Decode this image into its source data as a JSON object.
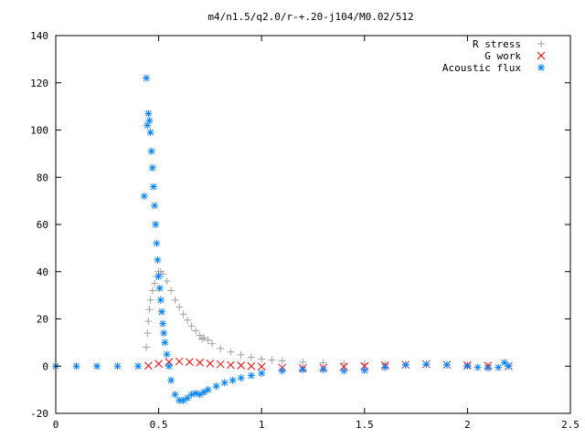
{
  "chart_data": {
    "type": "scatter",
    "title": "m4/n1.5/q2.0/r-+.20-j104/M0.02/512",
    "xlabel": "",
    "ylabel": "",
    "xlim": [
      0,
      2.5
    ],
    "ylim": [
      -20,
      140
    ],
    "xticks": [
      "0",
      "0.5",
      "1",
      "1.5",
      "2",
      "2.5"
    ],
    "yticks": [
      "-20",
      "0",
      "20",
      "40",
      "60",
      "80",
      "100",
      "120",
      "140"
    ],
    "grid": false,
    "legend_position": "top-right",
    "series": [
      {
        "name": "R stress",
        "marker": "plus",
        "color": "#a0a0a0",
        "x": [
          0.44,
          0.445,
          0.45,
          0.455,
          0.46,
          0.47,
          0.48,
          0.49,
          0.5,
          0.51,
          0.52,
          0.54,
          0.56,
          0.58,
          0.6,
          0.62,
          0.64,
          0.66,
          0.68,
          0.7,
          0.71,
          0.72,
          0.74,
          0.76,
          0.8,
          0.85,
          0.9,
          0.95,
          1.0,
          1.05,
          1.1,
          1.2,
          1.3,
          1.4,
          1.5,
          1.6,
          1.7,
          1.8,
          1.9,
          2.0,
          2.1,
          2.2
        ],
        "y": [
          8,
          14,
          19,
          24,
          28,
          32,
          35,
          38,
          40,
          40,
          39,
          36,
          32,
          28,
          25,
          22,
          19.5,
          17,
          15,
          13,
          11.5,
          12,
          11,
          9.5,
          7.5,
          6,
          4.8,
          3.8,
          3,
          2.6,
          2.2,
          1.7,
          1.4,
          1.2,
          1,
          0.8,
          0.7,
          0.6,
          0.5,
          0.4,
          0.3,
          0.2
        ]
      },
      {
        "name": "G work",
        "marker": "cross",
        "color": "#ff0000",
        "x": [
          0.45,
          0.5,
          0.55,
          0.6,
          0.65,
          0.7,
          0.75,
          0.8,
          0.85,
          0.9,
          0.95,
          1.0,
          1.1,
          1.2,
          1.3,
          1.4,
          1.5,
          1.6,
          1.7,
          1.8,
          1.9,
          2.0,
          2.1,
          2.2
        ],
        "y": [
          0.2,
          1,
          1.8,
          2,
          1.8,
          1.5,
          1.1,
          0.8,
          0.5,
          0.3,
          0,
          -0.2,
          -0.6,
          -0.8,
          -0.6,
          -0.3,
          0,
          0.4,
          0.6,
          0.8,
          0.6,
          0.4,
          0.2,
          0
        ]
      },
      {
        "name": "Acoustic flux",
        "marker": "star",
        "color": "#0080ff",
        "x": [
          0,
          0.1,
          0.2,
          0.3,
          0.4,
          0.43,
          0.44,
          0.445,
          0.45,
          0.455,
          0.46,
          0.465,
          0.47,
          0.475,
          0.48,
          0.485,
          0.49,
          0.495,
          0.5,
          0.505,
          0.51,
          0.515,
          0.52,
          0.525,
          0.53,
          0.54,
          0.55,
          0.56,
          0.58,
          0.6,
          0.62,
          0.64,
          0.66,
          0.68,
          0.7,
          0.72,
          0.74,
          0.78,
          0.82,
          0.86,
          0.9,
          0.95,
          1.0,
          1.1,
          1.2,
          1.3,
          1.4,
          1.5,
          1.6,
          1.7,
          1.8,
          1.9,
          2.0,
          2.05,
          2.1,
          2.15,
          2.18,
          2.2
        ],
        "y": [
          0,
          0,
          0,
          0,
          0,
          72,
          122,
          102,
          107,
          104,
          99,
          91,
          84,
          76,
          68,
          60,
          52,
          45,
          38,
          33,
          28,
          23,
          18,
          14,
          10,
          5,
          0,
          -6,
          -12,
          -14.5,
          -14.5,
          -13.5,
          -12,
          -11.5,
          -12,
          -11,
          -10,
          -8.5,
          -7,
          -6,
          -5,
          -4,
          -3,
          -2,
          -1.5,
          -1.5,
          -2,
          -1.8,
          -0.5,
          0.5,
          0.8,
          0.6,
          0,
          -0.5,
          -0.8,
          -0.5,
          1.5,
          0
        ]
      }
    ]
  }
}
